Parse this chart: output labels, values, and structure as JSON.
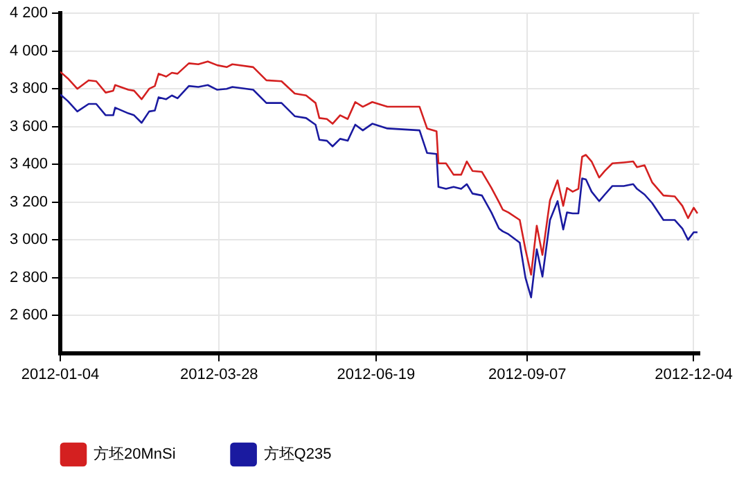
{
  "chart_data": {
    "type": "line",
    "x": [
      "2012-01-04",
      "2012-01-08",
      "2012-01-13",
      "2012-01-19",
      "2012-01-23",
      "2012-01-28",
      "2012-02-01",
      "2012-02-02",
      "2012-02-09",
      "2012-02-12",
      "2012-02-16",
      "2012-02-20",
      "2012-02-23",
      "2012-02-25",
      "2012-02-29",
      "2012-03-03",
      "2012-03-06",
      "2012-03-12",
      "2012-03-17",
      "2012-03-22",
      "2012-03-27",
      "2012-04-01",
      "2012-04-04",
      "2012-04-15",
      "2012-04-22",
      "2012-04-30",
      "2012-05-07",
      "2012-05-13",
      "2012-05-18",
      "2012-05-20",
      "2012-05-24",
      "2012-05-27",
      "2012-05-31",
      "2012-06-04",
      "2012-06-08",
      "2012-06-12",
      "2012-06-17",
      "2012-06-25",
      "2012-07-12",
      "2012-07-16",
      "2012-07-21",
      "2012-07-22",
      "2012-07-26",
      "2012-07-30",
      "2012-08-03",
      "2012-08-06",
      "2012-08-09",
      "2012-08-14",
      "2012-08-19",
      "2012-08-23",
      "2012-08-25",
      "2012-08-28",
      "2012-09-03",
      "2012-09-06",
      "2012-09-09",
      "2012-09-12",
      "2012-09-15",
      "2012-09-19",
      "2012-09-23",
      "2012-09-26",
      "2012-09-28",
      "2012-10-01",
      "2012-10-04",
      "2012-10-06",
      "2012-10-08",
      "2012-10-11",
      "2012-10-15",
      "2012-10-18",
      "2012-10-22",
      "2012-10-28",
      "2012-11-02",
      "2012-11-04",
      "2012-11-08",
      "2012-11-12",
      "2012-11-18",
      "2012-11-24",
      "2012-11-28",
      "2012-12-01",
      "2012-12-04",
      "2012-12-06"
    ],
    "series": [
      {
        "name": "方坯20MnSi",
        "color": "#d42020",
        "values": [
          3890,
          3855,
          3800,
          3845,
          3840,
          3780,
          3790,
          3820,
          3795,
          3790,
          3745,
          3800,
          3815,
          3880,
          3865,
          3885,
          3880,
          3935,
          3930,
          3945,
          3925,
          3915,
          3930,
          3915,
          3845,
          3840,
          3775,
          3765,
          3725,
          3645,
          3640,
          3615,
          3660,
          3640,
          3730,
          3705,
          3730,
          3705,
          3705,
          3590,
          3575,
          3405,
          3405,
          3345,
          3345,
          3415,
          3365,
          3360,
          3275,
          3200,
          3160,
          3145,
          3105,
          2950,
          2815,
          3075,
          2920,
          3210,
          3315,
          3180,
          3275,
          3255,
          3270,
          3440,
          3450,
          3415,
          3330,
          3365,
          3405,
          3410,
          3415,
          3385,
          3395,
          3305,
          3235,
          3230,
          3180,
          3115,
          3170,
          3140
        ]
      },
      {
        "name": "方坯Q235",
        "color": "#1a1aa0",
        "values": [
          3770,
          3735,
          3680,
          3720,
          3720,
          3660,
          3660,
          3700,
          3670,
          3660,
          3620,
          3680,
          3685,
          3755,
          3745,
          3765,
          3750,
          3815,
          3810,
          3820,
          3795,
          3800,
          3810,
          3795,
          3725,
          3725,
          3655,
          3645,
          3610,
          3530,
          3525,
          3495,
          3535,
          3525,
          3610,
          3580,
          3615,
          3590,
          3580,
          3460,
          3455,
          3280,
          3270,
          3280,
          3270,
          3295,
          3245,
          3235,
          3145,
          3060,
          3045,
          3030,
          2985,
          2800,
          2695,
          2950,
          2805,
          3105,
          3205,
          3055,
          3145,
          3140,
          3140,
          3325,
          3320,
          3255,
          3205,
          3240,
          3285,
          3285,
          3295,
          3270,
          3240,
          3195,
          3105,
          3105,
          3060,
          3000,
          3040,
          3040
        ]
      }
    ],
    "xlim": [
      "2012-01-04",
      "2012-12-07"
    ],
    "xticks": [
      "2012-01-04",
      "2012-03-28",
      "2012-06-19",
      "2012-09-07",
      "2012-12-04"
    ],
    "ylim": [
      2400,
      4200
    ],
    "yticks": [
      {
        "value": 2600,
        "label": "2 600"
      },
      {
        "value": 2800,
        "label": "2 800"
      },
      {
        "value": 3000,
        "label": "3 000"
      },
      {
        "value": 3200,
        "label": "3 200"
      },
      {
        "value": 3400,
        "label": "3 400"
      },
      {
        "value": 3600,
        "label": "3 600"
      },
      {
        "value": 3800,
        "label": "3 800"
      },
      {
        "value": 4000,
        "label": "4 000"
      },
      {
        "value": 4200,
        "label": "4 200"
      }
    ],
    "grid": true,
    "legend": "bottom left",
    "marker": "none",
    "line_style": "solid"
  }
}
